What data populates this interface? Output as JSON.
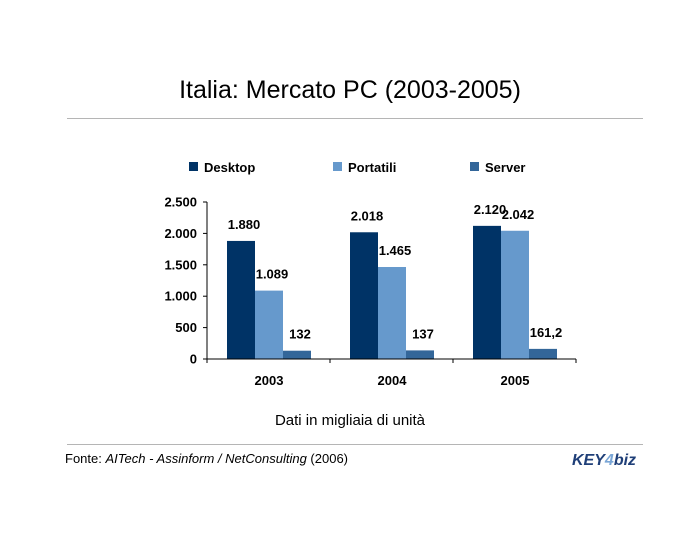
{
  "title": "Italia: Mercato PC (2003-2005)",
  "subtitle": "Dati in migliaia di unità",
  "source": {
    "prefix": "Fonte: ",
    "authors": "AITech - Assinform / NetConsulting",
    "suffix": " (2006)"
  },
  "logo": {
    "part1": "KEY",
    "part2": "4",
    "part3": "biz"
  },
  "chart_data": {
    "type": "bar",
    "categories": [
      "2003",
      "2004",
      "2005"
    ],
    "series": [
      {
        "name": "Desktop",
        "values": [
          1880,
          2018,
          2120
        ],
        "labels": [
          "1.880",
          "2.018",
          "2.120"
        ],
        "color": "#003366"
      },
      {
        "name": "Portatili",
        "values": [
          1089,
          1465,
          2042
        ],
        "labels": [
          "1.089",
          "1.465",
          "2.042"
        ],
        "color": "#6699cc"
      },
      {
        "name": "Server",
        "values": [
          132,
          137,
          161.2
        ],
        "labels": [
          "132",
          "137",
          "161,2"
        ],
        "color": "#336699"
      }
    ],
    "ylim": [
      0,
      2500
    ],
    "yticks": [
      0,
      500,
      1000,
      1500,
      2000,
      2500
    ],
    "ytick_labels": [
      "0",
      "500",
      "1.000",
      "1.500",
      "2.000",
      "2.500"
    ],
    "grid": false,
    "legend_position": "top"
  }
}
